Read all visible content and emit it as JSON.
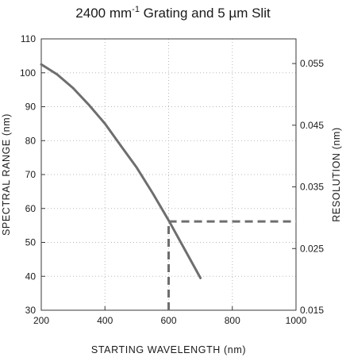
{
  "chart_data": {
    "type": "line",
    "title": {
      "main": "2400 mm",
      "superscript": "-1",
      "rest": " Grating and 5 µm Slit"
    },
    "xlabel": "STARTING WAVELENGTH (nm)",
    "ylabel": "SPECTRAL RANGE (nm)",
    "y2label": "RESOLUTION (nm)",
    "xlim": [
      200,
      1000
    ],
    "ylim": [
      30,
      110
    ],
    "y2lim": [
      0.015,
      0.059
    ],
    "xticks": [
      "200",
      "400",
      "600",
      "800",
      "1000"
    ],
    "yticks": [
      "30",
      "40",
      "50",
      "60",
      "70",
      "80",
      "90",
      "100",
      "110"
    ],
    "y2ticks": [
      "0.015",
      "0.025",
      "0.035",
      "0.045",
      "0.055"
    ],
    "grid": true,
    "series": [
      {
        "x": [
          200,
          250,
          300,
          350,
          400,
          450,
          500,
          550,
          600,
          650,
          700
        ],
        "y": [
          102.5,
          99.5,
          95.5,
          90.5,
          85,
          78.5,
          72,
          64.5,
          56.5,
          48,
          39.5
        ],
        "color": "#6e6e6e"
      }
    ],
    "reference_line": {
      "x": 600,
      "y2": 0.0294,
      "color": "#6e6e6e",
      "style": "dashed"
    }
  }
}
